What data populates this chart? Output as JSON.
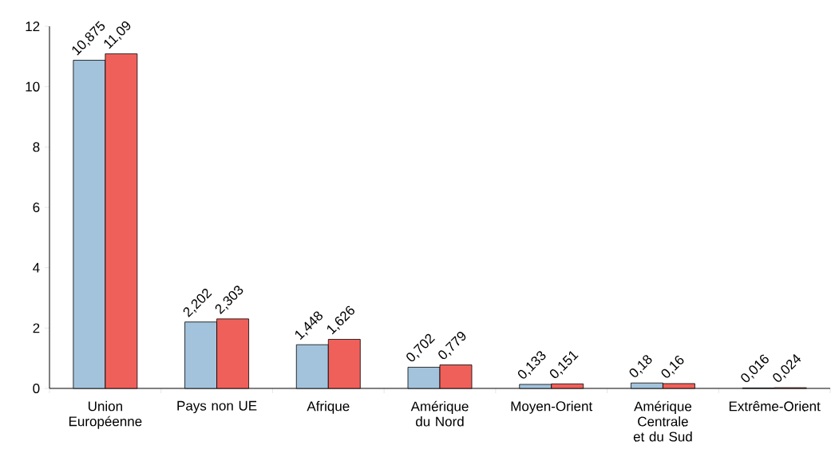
{
  "chart_data": {
    "type": "bar",
    "categories": [
      "Union Européenne",
      "Pays non UE",
      "Afrique",
      "Amérique du Nord",
      "Moyen-Orient",
      "Amérique Centrale et du Sud",
      "Extrême-Orient"
    ],
    "series": [
      {
        "color": "#a3c3dc",
        "values": [
          10.875,
          2.202,
          1.448,
          0.702,
          0.133,
          0.18,
          0.016
        ],
        "value_labels": [
          "10,875",
          "2,202",
          "1,448",
          "0,702",
          "0,133",
          "0,18",
          "0,016"
        ]
      },
      {
        "color": "#f0605a",
        "values": [
          11.09,
          2.303,
          1.626,
          0.779,
          0.151,
          0.16,
          0.024
        ],
        "value_labels": [
          "11,09",
          "2,303",
          "1,626",
          "0,779",
          "0,151",
          "0,16",
          "0,024"
        ]
      }
    ],
    "ylim": [
      0,
      12
    ],
    "yticks": [
      0,
      2,
      4,
      6,
      8,
      10,
      12
    ]
  }
}
